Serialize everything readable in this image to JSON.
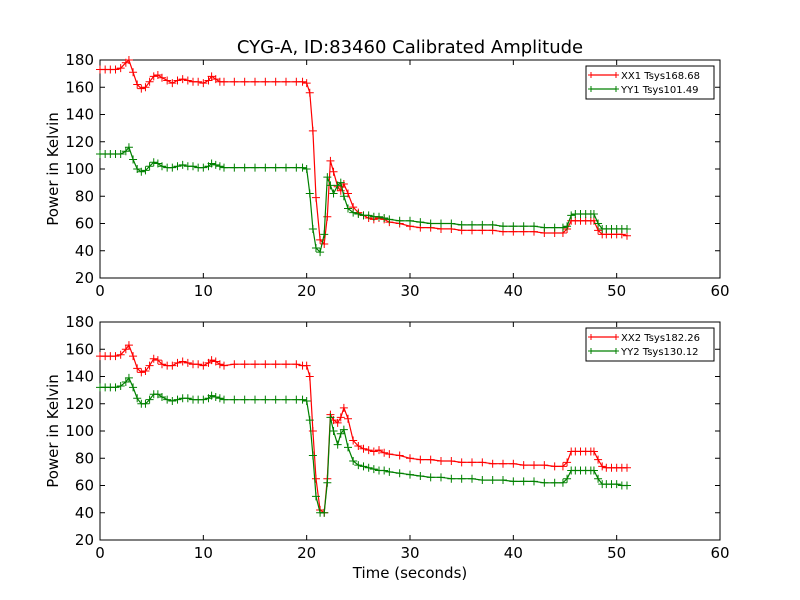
{
  "figure": {
    "title": "CYG-A, ID:83460 Calibrated Amplitude",
    "colors": {
      "xx": "#ff0000",
      "yy": "#008000"
    }
  },
  "chart_data": [
    {
      "type": "line",
      "title": "CYG-A, ID:83460 Calibrated Amplitude",
      "xlabel": "",
      "ylabel": "Power in Kelvin",
      "xlim": [
        0,
        60
      ],
      "ylim": [
        20,
        180
      ],
      "xticks": [
        "0",
        "10",
        "20",
        "30",
        "40",
        "50",
        "60"
      ],
      "yticks": [
        "20",
        "40",
        "60",
        "80",
        "100",
        "120",
        "140",
        "160",
        "180"
      ],
      "grid": false,
      "legend_position": "top-right",
      "series": [
        {
          "name": "XX1 Tsys168.68",
          "color": "#ff0000",
          "marker": "+",
          "x": [
            0.0,
            0.5,
            1.0,
            1.5,
            2.0,
            2.5,
            2.8,
            3.2,
            3.6,
            4.0,
            4.4,
            4.8,
            5.2,
            5.6,
            6.0,
            6.5,
            7.0,
            7.5,
            8.0,
            8.5,
            9.0,
            9.5,
            10.0,
            10.5,
            10.8,
            11.2,
            11.6,
            12.0,
            13.0,
            14.0,
            15.0,
            16.0,
            17.0,
            18.0,
            19.0,
            19.6,
            20.0,
            20.3,
            20.6,
            20.9,
            21.3,
            21.7,
            22.0,
            22.3,
            22.6,
            23.0,
            23.3,
            23.6,
            24.0,
            24.5,
            25.0,
            25.5,
            26.0,
            26.5,
            27.0,
            27.5,
            28.0,
            29.0,
            30.0,
            31.0,
            32.0,
            33.0,
            34.0,
            35.0,
            36.0,
            37.0,
            38.0,
            39.0,
            40.0,
            41.0,
            42.0,
            43.0,
            44.0,
            44.8,
            45.2,
            45.6,
            46.0,
            46.5,
            47.0,
            47.5,
            47.8,
            48.2,
            48.6,
            49.0,
            49.5,
            50.0,
            50.5,
            51.0
          ],
          "y": [
            173,
            173,
            173,
            173,
            174,
            178,
            180,
            171,
            162,
            159,
            160,
            164,
            168,
            169,
            167,
            165,
            163,
            165,
            166,
            165,
            164,
            164,
            163,
            165,
            168,
            166,
            164,
            164,
            164,
            164,
            164,
            164,
            164,
            164,
            164,
            164,
            163,
            156,
            128,
            79,
            48,
            45,
            65,
            106,
            98,
            87,
            84,
            89,
            82,
            72,
            68,
            66,
            64,
            63,
            64,
            63,
            61,
            60,
            58,
            57,
            57,
            56,
            56,
            55,
            55,
            55,
            55,
            54,
            54,
            54,
            54,
            53,
            53,
            53,
            56,
            62,
            62,
            62,
            62,
            62,
            62,
            55,
            52,
            52,
            52,
            52,
            52,
            51
          ]
        },
        {
          "name": "YY1 Tsys101.49",
          "color": "#008000",
          "marker": "+",
          "x": [
            0.0,
            0.5,
            1.0,
            1.5,
            2.0,
            2.5,
            2.8,
            3.2,
            3.6,
            4.0,
            4.4,
            4.8,
            5.2,
            5.6,
            6.0,
            6.5,
            7.0,
            7.5,
            8.0,
            8.5,
            9.0,
            9.5,
            10.0,
            10.5,
            10.8,
            11.2,
            11.6,
            12.0,
            13.0,
            14.0,
            15.0,
            16.0,
            17.0,
            18.0,
            19.0,
            19.6,
            20.0,
            20.3,
            20.6,
            20.9,
            21.3,
            21.7,
            22.0,
            22.3,
            22.6,
            23.0,
            23.3,
            23.6,
            24.0,
            24.5,
            25.0,
            25.5,
            26.0,
            26.5,
            27.0,
            27.5,
            28.0,
            29.0,
            30.0,
            31.0,
            32.0,
            33.0,
            34.0,
            35.0,
            36.0,
            37.0,
            38.0,
            39.0,
            40.0,
            41.0,
            42.0,
            43.0,
            44.0,
            44.8,
            45.2,
            45.6,
            46.0,
            46.5,
            47.0,
            47.5,
            47.8,
            48.2,
            48.6,
            49.0,
            49.5,
            50.0,
            50.5,
            51.0
          ],
          "y": [
            111,
            111,
            111,
            111,
            111,
            113,
            116,
            107,
            100,
            98,
            99,
            102,
            105,
            104,
            102,
            101,
            101,
            102,
            103,
            102,
            102,
            101,
            101,
            102,
            104,
            103,
            102,
            101,
            101,
            101,
            101,
            101,
            101,
            101,
            101,
            101,
            100,
            82,
            56,
            42,
            39,
            52,
            94,
            88,
            82,
            88,
            90,
            80,
            71,
            68,
            67,
            66,
            66,
            65,
            65,
            64,
            63,
            62,
            62,
            61,
            60,
            60,
            60,
            59,
            59,
            59,
            59,
            58,
            58,
            58,
            58,
            57,
            57,
            57,
            58,
            66,
            67,
            67,
            67,
            67,
            67,
            60,
            56,
            56,
            56,
            56,
            56,
            56
          ]
        }
      ]
    },
    {
      "type": "line",
      "title": "",
      "xlabel": "Time (seconds)",
      "ylabel": "Power in Kelvin",
      "xlim": [
        0,
        60
      ],
      "ylim": [
        20,
        180
      ],
      "xticks": [
        "0",
        "10",
        "20",
        "30",
        "40",
        "50",
        "60"
      ],
      "yticks": [
        "20",
        "40",
        "60",
        "80",
        "100",
        "120",
        "140",
        "160",
        "180"
      ],
      "grid": false,
      "legend_position": "top-right",
      "series": [
        {
          "name": "XX2 Tsys182.26",
          "color": "#ff0000",
          "marker": "+",
          "x": [
            0.0,
            0.5,
            1.0,
            1.5,
            2.0,
            2.5,
            2.8,
            3.2,
            3.6,
            4.0,
            4.4,
            4.8,
            5.2,
            5.6,
            6.0,
            6.5,
            7.0,
            7.5,
            8.0,
            8.5,
            9.0,
            9.5,
            10.0,
            10.5,
            10.8,
            11.2,
            11.6,
            12.0,
            13.0,
            14.0,
            15.0,
            16.0,
            17.0,
            18.0,
            19.0,
            19.6,
            20.0,
            20.3,
            20.6,
            20.9,
            21.3,
            21.7,
            22.0,
            22.3,
            22.6,
            23.0,
            23.3,
            23.6,
            24.0,
            24.5,
            25.0,
            25.5,
            26.0,
            26.5,
            27.0,
            27.5,
            28.0,
            29.0,
            30.0,
            31.0,
            32.0,
            33.0,
            34.0,
            35.0,
            36.0,
            37.0,
            38.0,
            39.0,
            40.0,
            41.0,
            42.0,
            43.0,
            44.0,
            44.8,
            45.2,
            45.6,
            46.0,
            46.5,
            47.0,
            47.5,
            47.8,
            48.2,
            48.6,
            49.0,
            49.5,
            50.0,
            50.5,
            51.0
          ],
          "y": [
            155,
            155,
            155,
            155,
            156,
            160,
            163,
            155,
            146,
            143,
            144,
            148,
            153,
            152,
            149,
            148,
            148,
            150,
            151,
            150,
            149,
            149,
            148,
            150,
            152,
            151,
            149,
            148,
            149,
            149,
            149,
            149,
            149,
            149,
            149,
            148,
            148,
            140,
            100,
            65,
            42,
            40,
            65,
            112,
            108,
            106,
            110,
            117,
            109,
            93,
            89,
            87,
            86,
            85,
            86,
            84,
            83,
            82,
            80,
            79,
            79,
            78,
            78,
            77,
            77,
            77,
            76,
            76,
            76,
            75,
            75,
            75,
            74,
            74,
            77,
            85,
            85,
            85,
            85,
            85,
            85,
            79,
            74,
            73,
            73,
            73,
            73,
            73
          ]
        },
        {
          "name": "YY2 Tsys130.12",
          "color": "#008000",
          "marker": "+",
          "x": [
            0.0,
            0.5,
            1.0,
            1.5,
            2.0,
            2.5,
            2.8,
            3.2,
            3.6,
            4.0,
            4.4,
            4.8,
            5.2,
            5.6,
            6.0,
            6.5,
            7.0,
            7.5,
            8.0,
            8.5,
            9.0,
            9.5,
            10.0,
            10.5,
            10.8,
            11.2,
            11.6,
            12.0,
            13.0,
            14.0,
            15.0,
            16.0,
            17.0,
            18.0,
            19.0,
            19.6,
            20.0,
            20.3,
            20.6,
            20.9,
            21.3,
            21.7,
            22.0,
            22.3,
            22.6,
            23.0,
            23.3,
            23.6,
            24.0,
            24.5,
            25.0,
            25.5,
            26.0,
            26.5,
            27.0,
            27.5,
            28.0,
            29.0,
            30.0,
            31.0,
            32.0,
            33.0,
            34.0,
            35.0,
            36.0,
            37.0,
            38.0,
            39.0,
            40.0,
            41.0,
            42.0,
            43.0,
            44.0,
            44.8,
            45.2,
            45.6,
            46.0,
            46.5,
            47.0,
            47.5,
            47.8,
            48.2,
            48.6,
            49.0,
            49.5,
            50.0,
            50.5,
            51.0
          ],
          "y": [
            132,
            132,
            132,
            132,
            133,
            136,
            139,
            132,
            124,
            120,
            120,
            123,
            127,
            127,
            125,
            123,
            122,
            123,
            124,
            124,
            123,
            123,
            123,
            124,
            126,
            125,
            124,
            123,
            123,
            123,
            123,
            123,
            123,
            123,
            123,
            123,
            122,
            108,
            82,
            52,
            40,
            40,
            62,
            110,
            100,
            90,
            98,
            101,
            88,
            78,
            75,
            74,
            73,
            72,
            71,
            71,
            70,
            69,
            68,
            67,
            66,
            66,
            65,
            65,
            65,
            64,
            64,
            64,
            63,
            63,
            63,
            62,
            62,
            62,
            65,
            71,
            71,
            71,
            71,
            71,
            71,
            65,
            61,
            61,
            61,
            61,
            60,
            60
          ]
        }
      ]
    }
  ]
}
